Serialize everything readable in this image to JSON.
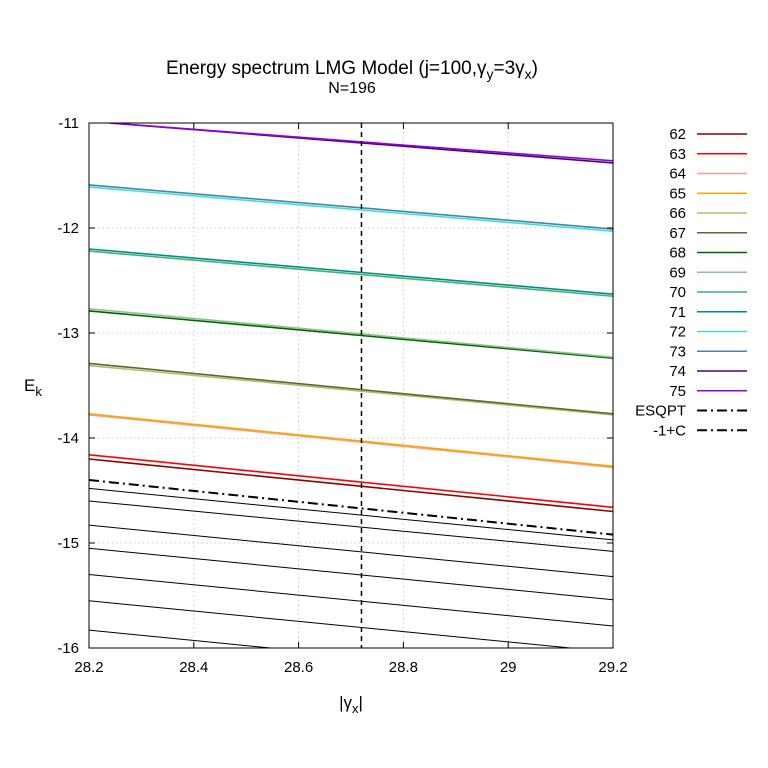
{
  "chart_data": {
    "type": "line",
    "title": "Energy spectrum LMG Model (j=100,γ_y=3γ_x)",
    "title_parts": {
      "prefix": "Energy spectrum LMG Model (j=100,γ",
      "sub1": "y",
      "middle": "=3γ",
      "sub2": "x",
      "suffix": ")"
    },
    "subtitle": "N=196",
    "xlabel": {
      "pre": "|γ",
      "sub": "x",
      "post": "|"
    },
    "ylabel": {
      "main": "E",
      "sub": "k"
    },
    "xlim": [
      28.2,
      29.2
    ],
    "ylim": [
      -16,
      -11
    ],
    "x_ticks": [
      {
        "value": 28.2,
        "label": "28.2"
      },
      {
        "value": 28.4,
        "label": "28.4"
      },
      {
        "value": 28.6,
        "label": "28.6"
      },
      {
        "value": 28.8,
        "label": "28.8"
      },
      {
        "value": 29.0,
        "label": "29"
      },
      {
        "value": 29.2,
        "label": "29.2"
      }
    ],
    "y_ticks": [
      {
        "value": -11,
        "label": "-11"
      },
      {
        "value": -12,
        "label": "-12"
      },
      {
        "value": -13,
        "label": "-13"
      },
      {
        "value": -14,
        "label": "-14"
      },
      {
        "value": -15,
        "label": "-15"
      },
      {
        "value": -16,
        "label": "-16"
      }
    ],
    "grid": true,
    "legend_position": "outside-right",
    "esqpt_vertical_x": 28.72,
    "series": [
      {
        "name": "62",
        "color": "#8b0000",
        "x": [
          28.2,
          29.2
        ],
        "y": [
          -14.2,
          -14.7
        ]
      },
      {
        "name": "63",
        "color": "#ff0000",
        "x": [
          28.2,
          29.2
        ],
        "y": [
          -14.16,
          -14.66
        ]
      },
      {
        "name": "64",
        "color": "#f4a090",
        "x": [
          28.2,
          29.2
        ],
        "y": [
          -13.78,
          -14.28
        ]
      },
      {
        "name": "65",
        "color": "#ffa500",
        "x": [
          28.2,
          29.2
        ],
        "y": [
          -13.77,
          -14.27
        ]
      },
      {
        "name": "66",
        "color": "#bdb76b",
        "x": [
          28.2,
          29.2
        ],
        "y": [
          -13.31,
          -13.78
        ]
      },
      {
        "name": "67",
        "color": "#556b2f",
        "x": [
          28.2,
          29.2
        ],
        "y": [
          -13.29,
          -13.77
        ]
      },
      {
        "name": "68",
        "color": "#006400",
        "x": [
          28.2,
          29.2
        ],
        "y": [
          -12.79,
          -13.24
        ]
      },
      {
        "name": "69",
        "color": "#90c090",
        "x": [
          28.2,
          29.2
        ],
        "y": [
          -12.77,
          -13.23
        ]
      },
      {
        "name": "70",
        "color": "#3cb371",
        "x": [
          28.2,
          29.2
        ],
        "y": [
          -12.22,
          -12.65
        ]
      },
      {
        "name": "71",
        "color": "#008b8b",
        "x": [
          28.2,
          29.2
        ],
        "y": [
          -12.2,
          -12.63
        ]
      },
      {
        "name": "72",
        "color": "#40e0d0",
        "x": [
          28.2,
          29.2
        ],
        "y": [
          -11.61,
          -12.03
        ]
      },
      {
        "name": "73",
        "color": "#4682b4",
        "x": [
          28.2,
          29.2
        ],
        "y": [
          -11.59,
          -12.01
        ]
      },
      {
        "name": "74",
        "color": "#4b0082",
        "x": [
          28.24,
          29.2
        ],
        "y": [
          -11.0,
          -11.38
        ]
      },
      {
        "name": "75",
        "color": "#9400d3",
        "x": [
          28.24,
          29.2
        ],
        "y": [
          -11.0,
          -11.36
        ]
      },
      {
        "name": "ESQPT",
        "color": "#000000",
        "dash": "10 4 2 4",
        "width": 2,
        "x": [
          28.2,
          29.2
        ],
        "y": [
          -14.4,
          -14.92
        ]
      },
      {
        "name": "-1+C",
        "color": "#000000",
        "dash": "10 4 2 4",
        "width": 2,
        "x": [
          28.2,
          29.2
        ],
        "y": [
          -14.4,
          -14.92
        ],
        "hidden": true
      }
    ],
    "lower_levels": [
      {
        "x": [
          28.2,
          29.2
        ],
        "y": [
          -14.48,
          -14.97
        ]
      },
      {
        "x": [
          28.2,
          29.2
        ],
        "y": [
          -14.6,
          -15.08
        ]
      },
      {
        "x": [
          28.2,
          29.2
        ],
        "y": [
          -14.83,
          -15.32
        ]
      },
      {
        "x": [
          28.2,
          29.2
        ],
        "y": [
          -15.05,
          -15.54
        ]
      },
      {
        "x": [
          28.2,
          29.2
        ],
        "y": [
          -15.3,
          -15.79
        ]
      },
      {
        "x": [
          28.2,
          29.2
        ],
        "y": [
          -15.55,
          -16.04
        ]
      },
      {
        "x": [
          28.2,
          29.2
        ],
        "y": [
          -15.83,
          -16.32
        ]
      }
    ]
  }
}
